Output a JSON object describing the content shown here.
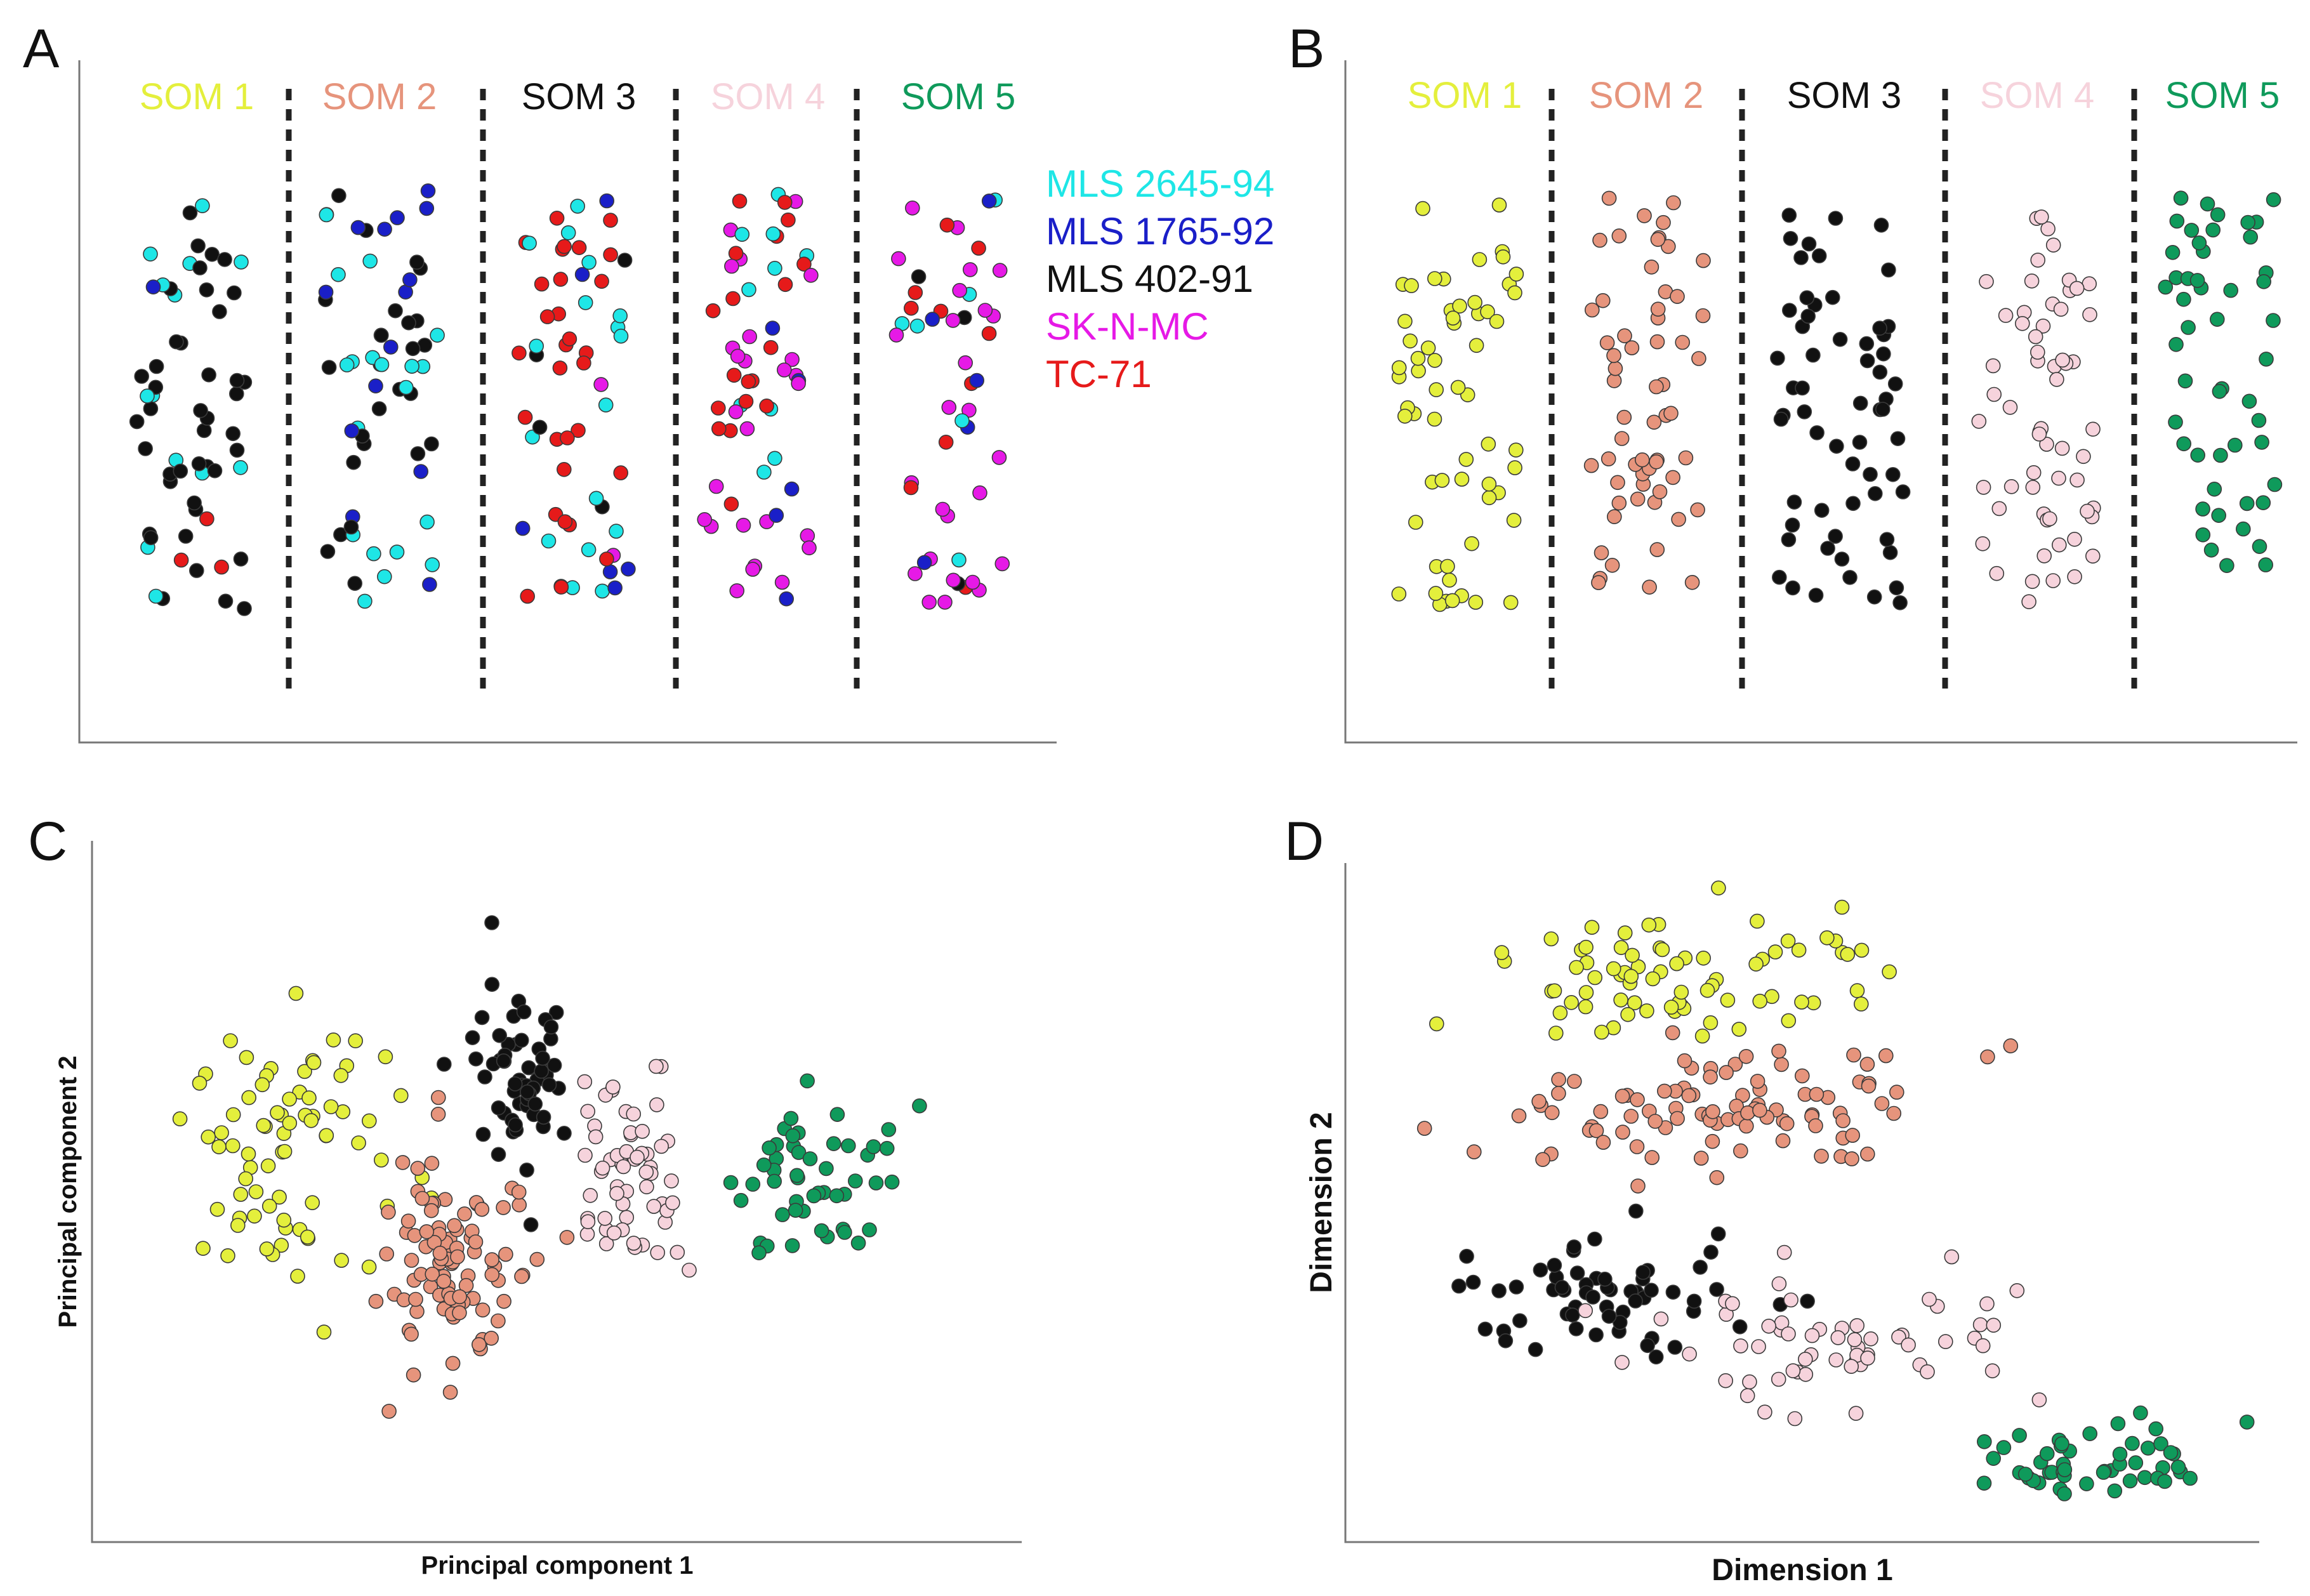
{
  "panels": [
    {
      "letter": "A"
    },
    {
      "letter": "B"
    },
    {
      "letter": "C"
    },
    {
      "letter": "D"
    }
  ],
  "som_clusters": [
    {
      "name": "SOM 1",
      "color": "#e4ef3c"
    },
    {
      "name": "SOM 2",
      "color": "#e6947c"
    },
    {
      "name": "SOM 3",
      "color": "#111111"
    },
    {
      "name": "SOM 4",
      "color": "#f6d3dc"
    },
    {
      "name": "SOM 5",
      "color": "#0f9a5b"
    }
  ],
  "cell_lines": [
    {
      "name": "MLS 2645-94",
      "color": "#1ee6e6"
    },
    {
      "name": "MLS 1765-92",
      "color": "#1a1fc8"
    },
    {
      "name": "MLS 402-91",
      "color": "#111111"
    },
    {
      "name": "SK-N-MC",
      "color": "#e619e6"
    },
    {
      "name": "TC-71",
      "color": "#e61a1a"
    }
  ],
  "chart_data": [
    {
      "panel": "A",
      "type": "scatter",
      "title": "",
      "xlabel": "",
      "ylabel": "",
      "groups": [
        "SOM 1",
        "SOM 2",
        "SOM 3",
        "SOM 4",
        "SOM 5"
      ],
      "legend": [
        "MLS 2645-94",
        "MLS 1765-92",
        "MLS 402-91",
        "SK-N-MC",
        "TC-71"
      ],
      "legend_position": "right",
      "points_per_group": [
        60,
        60,
        60,
        60,
        50
      ],
      "composition": [
        {
          "MLS 2645-94": 0.25,
          "MLS 1765-92": 0.03,
          "MLS 402-91": 0.67,
          "TC-71": 0.05
        },
        {
          "MLS 2645-94": 0.25,
          "MLS 1765-92": 0.35,
          "MLS 402-91": 0.4
        },
        {
          "MLS 2645-94": 0.3,
          "MLS 1765-92": 0.05,
          "MLS 402-91": 0.05,
          "SK-N-MC": 0.05,
          "TC-71": 0.55
        },
        {
          "MLS 2645-94": 0.1,
          "MLS 1765-92": 0.15,
          "SK-N-MC": 0.4,
          "TC-71": 0.35
        },
        {
          "MLS 2645-94": 0.1,
          "MLS 1765-92": 0.12,
          "MLS 402-91": 0.08,
          "SK-N-MC": 0.55,
          "TC-71": 0.15
        }
      ],
      "grid": false
    },
    {
      "panel": "B",
      "type": "scatter",
      "title": "",
      "xlabel": "",
      "ylabel": "",
      "groups": [
        "SOM 1",
        "SOM 2",
        "SOM 3",
        "SOM 4",
        "SOM 5"
      ],
      "points_per_group": [
        60,
        60,
        60,
        60,
        50
      ],
      "grid": false
    },
    {
      "panel": "C",
      "type": "scatter",
      "title": "",
      "xlabel": "Principal component 1",
      "ylabel": "Principal component 2",
      "xlim": [
        0,
        100
      ],
      "ylim": [
        0,
        100
      ],
      "clusters": [
        {
          "name": "SOM 1",
          "center": [
            21,
            58
          ],
          "spread": [
            11,
            22
          ],
          "n": 75
        },
        {
          "name": "SOM 2",
          "center": [
            39,
            40
          ],
          "spread": [
            8,
            16
          ],
          "n": 95
        },
        {
          "name": "SOM 3",
          "center": [
            46,
            67
          ],
          "spread": [
            5,
            15
          ],
          "n": 60
        },
        {
          "name": "SOM 4",
          "center": [
            58,
            52
          ],
          "spread": [
            5,
            15
          ],
          "n": 60
        },
        {
          "name": "SOM 5",
          "center": [
            78,
            52
          ],
          "spread": [
            10,
            12
          ],
          "n": 50
        }
      ],
      "grid": false
    },
    {
      "panel": "D",
      "type": "scatter",
      "title": "",
      "xlabel": "Dimension 1",
      "ylabel": "Dimension 2",
      "xlim": [
        0,
        100
      ],
      "ylim": [
        0,
        100
      ],
      "clusters": [
        {
          "name": "SOM 1",
          "center": [
            37,
            84
          ],
          "spread": [
            22,
            9
          ],
          "n": 75
        },
        {
          "name": "SOM 2",
          "center": [
            42,
            64
          ],
          "spread": [
            24,
            10
          ],
          "n": 95
        },
        {
          "name": "SOM 3",
          "center": [
            28,
            37
          ],
          "spread": [
            16,
            9
          ],
          "n": 60
        },
        {
          "name": "SOM 4",
          "center": [
            53,
            28
          ],
          "spread": [
            20,
            10
          ],
          "n": 60
        },
        {
          "name": "SOM 5",
          "center": [
            82,
            11
          ],
          "spread": [
            16,
            6
          ],
          "n": 50
        }
      ],
      "grid": false
    }
  ]
}
